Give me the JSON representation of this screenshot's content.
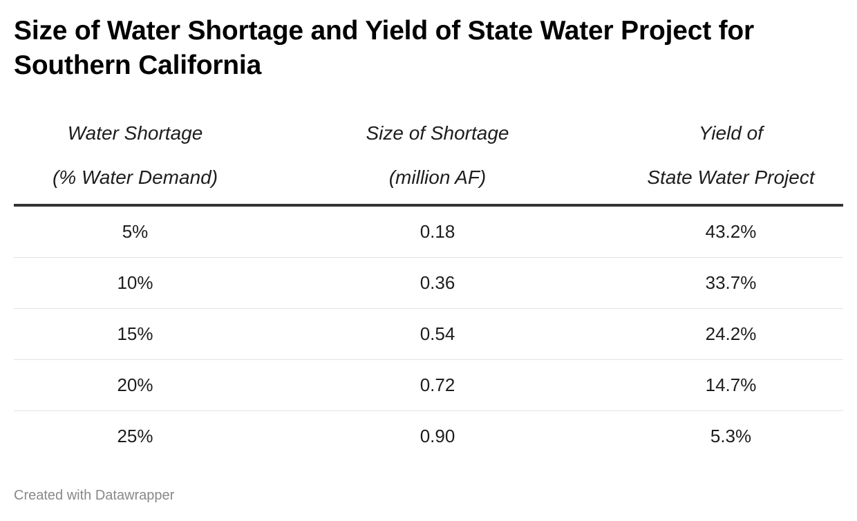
{
  "title": "Size of Water Shortage and Yield of State Water Project for Southern California",
  "headers": [
    {
      "line1": "Water Shortage",
      "line2": "(% Water Demand)"
    },
    {
      "line1": "Size of Shortage",
      "line2": "(million AF)"
    },
    {
      "line1": "Yield of",
      "line2": "State Water Project"
    }
  ],
  "rows": [
    [
      "5%",
      "0.18",
      "43.2%"
    ],
    [
      "10%",
      "0.36",
      "33.7%"
    ],
    [
      "15%",
      "0.54",
      "24.2%"
    ],
    [
      "20%",
      "0.72",
      "14.7%"
    ],
    [
      "25%",
      "0.90",
      "5.3%"
    ]
  ],
  "credit": "Created with Datawrapper",
  "colors": {
    "title": "#000000",
    "text": "#1d1d1d",
    "header_rule": "#333333",
    "row_rule": "#e3e3e3",
    "credit": "#888888"
  },
  "chart_data": {
    "type": "table",
    "title": "Size of Water Shortage and Yield of State Water Project for Southern California",
    "columns": [
      "Water Shortage (% Water Demand)",
      "Size of Shortage (million AF)",
      "Yield of State Water Project"
    ],
    "rows": [
      [
        5,
        0.18,
        43.2
      ],
      [
        10,
        0.36,
        33.7
      ],
      [
        15,
        0.54,
        24.2
      ],
      [
        20,
        0.72,
        14.7
      ],
      [
        25,
        0.9,
        5.3
      ]
    ]
  }
}
